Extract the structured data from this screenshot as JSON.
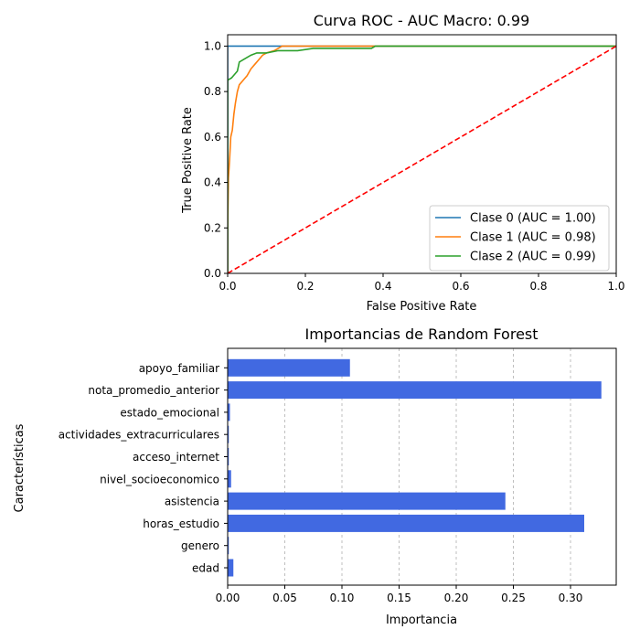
{
  "chart_data": [
    {
      "type": "line",
      "title": "Curva ROC - AUC Macro: 0.99",
      "xlabel": "False Positive Rate",
      "ylabel": "True Positive Rate",
      "xlim": [
        0,
        1
      ],
      "ylim": [
        0,
        1.05
      ],
      "xticks": [
        "0.0",
        "0.2",
        "0.4",
        "0.6",
        "0.8",
        "1.0"
      ],
      "yticks": [
        "0.0",
        "0.2",
        "0.4",
        "0.6",
        "0.8",
        "1.0"
      ],
      "grid": false,
      "legend_position": "bottom-right",
      "series": [
        {
          "name": "Clase 0 (AUC = 1.00)",
          "color": "#1f77b4",
          "points": [
            [
              0,
              0
            ],
            [
              0,
              1.0
            ],
            [
              1,
              1.0
            ]
          ]
        },
        {
          "name": "Clase 1 (AUC = 0.98)",
          "color": "#ff7f0e",
          "points": [
            [
              0,
              0
            ],
            [
              0,
              0.2
            ],
            [
              0.002,
              0.42
            ],
            [
              0.005,
              0.5
            ],
            [
              0.008,
              0.6
            ],
            [
              0.012,
              0.63
            ],
            [
              0.016,
              0.7
            ],
            [
              0.02,
              0.75
            ],
            [
              0.025,
              0.8
            ],
            [
              0.03,
              0.83
            ],
            [
              0.04,
              0.85
            ],
            [
              0.05,
              0.87
            ],
            [
              0.06,
              0.9
            ],
            [
              0.07,
              0.92
            ],
            [
              0.08,
              0.94
            ],
            [
              0.09,
              0.96
            ],
            [
              0.1,
              0.97
            ],
            [
              0.12,
              0.98
            ],
            [
              0.14,
              1.0
            ],
            [
              0.37,
              1.0
            ],
            [
              1,
              1.0
            ]
          ]
        },
        {
          "name": "Clase 2 (AUC = 0.99)",
          "color": "#2ca02c",
          "points": [
            [
              0,
              0
            ],
            [
              0,
              0.85
            ],
            [
              0.01,
              0.86
            ],
            [
              0.015,
              0.87
            ],
            [
              0.025,
              0.89
            ],
            [
              0.03,
              0.93
            ],
            [
              0.04,
              0.94
            ],
            [
              0.05,
              0.95
            ],
            [
              0.06,
              0.96
            ],
            [
              0.075,
              0.97
            ],
            [
              0.1,
              0.97
            ],
            [
              0.13,
              0.98
            ],
            [
              0.18,
              0.98
            ],
            [
              0.22,
              0.99
            ],
            [
              0.37,
              0.99
            ],
            [
              0.38,
              1.0
            ],
            [
              0.54,
              1.0
            ],
            [
              1,
              1.0
            ]
          ]
        },
        {
          "name": "",
          "color": "#ff0000",
          "dashed": true,
          "points": [
            [
              0,
              0
            ],
            [
              1,
              1
            ]
          ]
        }
      ]
    },
    {
      "type": "bar",
      "orientation": "horizontal",
      "title": "Importancias de Random Forest",
      "xlabel": "Importancia",
      "ylabel": "Características",
      "xlim": [
        0,
        0.34
      ],
      "xticks": [
        "0.00",
        "0.05",
        "0.10",
        "0.15",
        "0.20",
        "0.25",
        "0.30"
      ],
      "grid": "x-dashed",
      "color": "#4169e1",
      "categories": [
        "edad",
        "genero",
        "horas_estudio",
        "asistencia",
        "nivel_socioeconomico",
        "acceso_internet",
        "actividades_extracurriculares",
        "estado_emocional",
        "nota_promedio_anterior",
        "apoyo_familiar"
      ],
      "values": [
        0.005,
        0.001,
        0.312,
        0.243,
        0.003,
        0.001,
        0.001,
        0.002,
        0.327,
        0.107
      ]
    }
  ]
}
